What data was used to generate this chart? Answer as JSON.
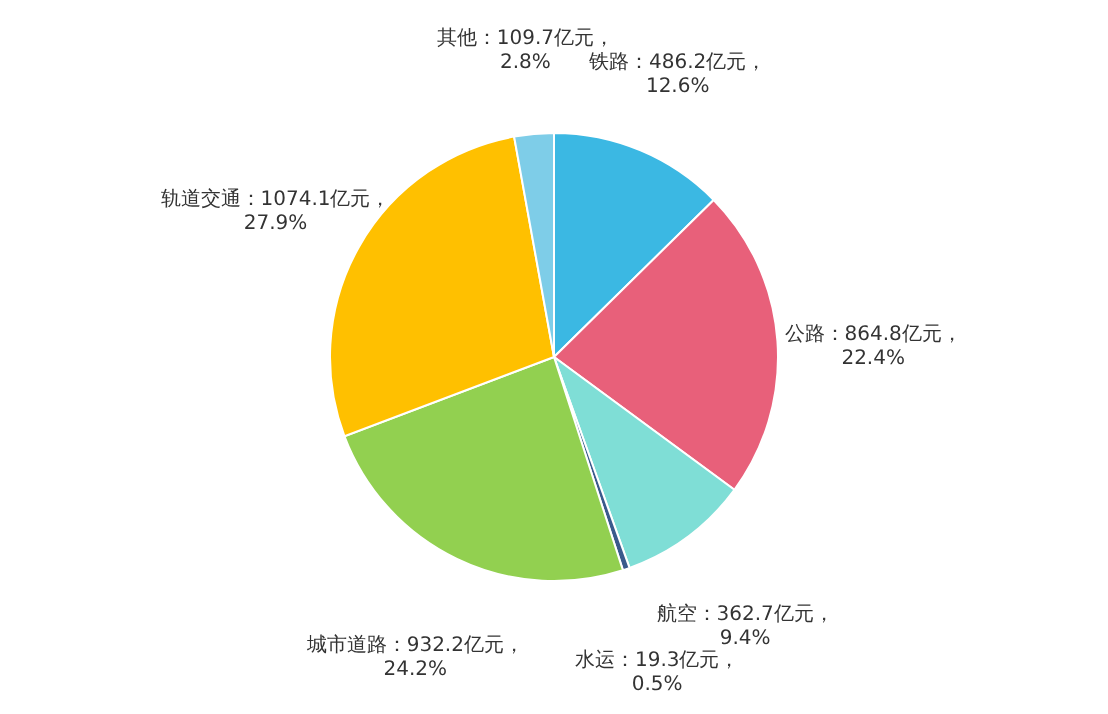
{
  "chart_data": {
    "type": "pie",
    "categories": [
      "铁路",
      "公路",
      "航空",
      "水运",
      "城市道路",
      "轨道交通",
      "其他"
    ],
    "values": [
      486.2,
      864.8,
      362.7,
      19.3,
      932.2,
      1074.1,
      109.7
    ],
    "value_labels": [
      "486.2亿元，\n12.6%",
      "864.8亿元，\n22.4%",
      "362.7亿元，\n9.4%",
      "19.3亿元，\n0.5%",
      "932.2亿元，\n24.2%",
      "1074.1亿元，\n27.9%",
      "109.7亿元，\n2.8%"
    ],
    "colors": [
      "#3bb8e3",
      "#e8607a",
      "#7fded6",
      "#3a5a8c",
      "#92d050",
      "#ffc000",
      "#7ecde8"
    ],
    "legend": false
  }
}
